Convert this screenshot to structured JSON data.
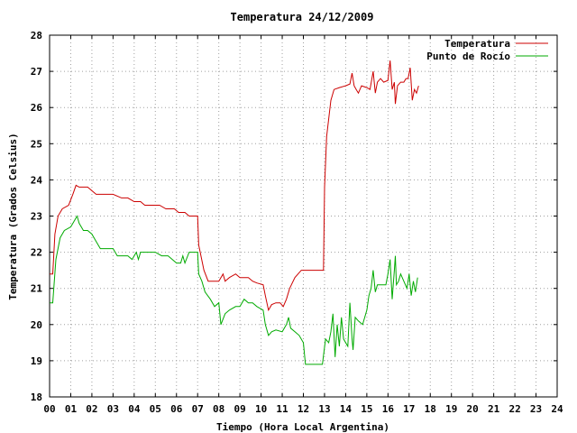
{
  "chart_data": {
    "type": "line",
    "title": "Temperatura 24/12/2009",
    "xlabel": "Tiempo (Hora Local Argentina)",
    "ylabel": "Temperatura (Grados Celsius)",
    "xlim": [
      0,
      24
    ],
    "ylim": [
      18,
      28
    ],
    "x_ticks": [
      "00",
      "01",
      "02",
      "03",
      "04",
      "05",
      "06",
      "07",
      "08",
      "09",
      "10",
      "11",
      "12",
      "13",
      "14",
      "15",
      "16",
      "17",
      "18",
      "19",
      "20",
      "21",
      "22",
      "23",
      "24"
    ],
    "y_ticks": [
      "18",
      "19",
      "20",
      "21",
      "22",
      "23",
      "24",
      "25",
      "26",
      "27",
      "28"
    ],
    "grid": true,
    "legend_position": "top-right",
    "series": [
      {
        "name": "Temperatura",
        "color": "#cc0000",
        "points": [
          [
            0.0,
            21.4
          ],
          [
            0.15,
            21.4
          ],
          [
            0.25,
            22.5
          ],
          [
            0.4,
            23.0
          ],
          [
            0.6,
            23.2
          ],
          [
            0.9,
            23.3
          ],
          [
            1.1,
            23.6
          ],
          [
            1.25,
            23.85
          ],
          [
            1.4,
            23.8
          ],
          [
            1.6,
            23.8
          ],
          [
            1.8,
            23.8
          ],
          [
            2.0,
            23.7
          ],
          [
            2.2,
            23.6
          ],
          [
            2.6,
            23.6
          ],
          [
            3.0,
            23.6
          ],
          [
            3.4,
            23.5
          ],
          [
            3.7,
            23.5
          ],
          [
            4.0,
            23.4
          ],
          [
            4.3,
            23.4
          ],
          [
            4.5,
            23.3
          ],
          [
            4.9,
            23.3
          ],
          [
            5.2,
            23.3
          ],
          [
            5.5,
            23.2
          ],
          [
            5.9,
            23.2
          ],
          [
            6.1,
            23.1
          ],
          [
            6.4,
            23.1
          ],
          [
            6.6,
            23.0
          ],
          [
            7.0,
            23.0
          ],
          [
            7.05,
            22.2
          ],
          [
            7.3,
            21.5
          ],
          [
            7.5,
            21.2
          ],
          [
            7.8,
            21.2
          ],
          [
            8.0,
            21.2
          ],
          [
            8.2,
            21.4
          ],
          [
            8.3,
            21.2
          ],
          [
            8.5,
            21.3
          ],
          [
            8.8,
            21.4
          ],
          [
            9.0,
            21.3
          ],
          [
            9.4,
            21.3
          ],
          [
            9.6,
            21.2
          ],
          [
            9.8,
            21.15
          ],
          [
            10.1,
            21.1
          ],
          [
            10.2,
            20.8
          ],
          [
            10.35,
            20.4
          ],
          [
            10.5,
            20.55
          ],
          [
            10.7,
            20.6
          ],
          [
            10.9,
            20.6
          ],
          [
            11.05,
            20.5
          ],
          [
            11.2,
            20.7
          ],
          [
            11.35,
            21.0
          ],
          [
            11.6,
            21.3
          ],
          [
            11.9,
            21.5
          ],
          [
            12.2,
            21.5
          ],
          [
            12.6,
            21.5
          ],
          [
            12.95,
            21.5
          ],
          [
            13.0,
            23.8
          ],
          [
            13.1,
            25.2
          ],
          [
            13.3,
            26.2
          ],
          [
            13.45,
            26.5
          ],
          [
            13.7,
            26.55
          ],
          [
            14.0,
            26.6
          ],
          [
            14.2,
            26.65
          ],
          [
            14.3,
            26.95
          ],
          [
            14.4,
            26.6
          ],
          [
            14.5,
            26.5
          ],
          [
            14.6,
            26.4
          ],
          [
            14.75,
            26.6
          ],
          [
            15.0,
            26.55
          ],
          [
            15.15,
            26.5
          ],
          [
            15.3,
            27.0
          ],
          [
            15.4,
            26.4
          ],
          [
            15.5,
            26.7
          ],
          [
            15.65,
            26.8
          ],
          [
            15.8,
            26.7
          ],
          [
            16.0,
            26.75
          ],
          [
            16.1,
            27.3
          ],
          [
            16.2,
            26.5
          ],
          [
            16.3,
            26.7
          ],
          [
            16.35,
            26.1
          ],
          [
            16.45,
            26.6
          ],
          [
            16.6,
            26.7
          ],
          [
            16.75,
            26.7
          ],
          [
            16.85,
            26.8
          ],
          [
            16.95,
            26.8
          ],
          [
            17.05,
            27.1
          ],
          [
            17.15,
            26.2
          ],
          [
            17.25,
            26.5
          ],
          [
            17.35,
            26.4
          ],
          [
            17.45,
            26.6
          ]
        ]
      },
      {
        "name": "Punto de Rocío",
        "color": "#00aa00",
        "points": [
          [
            0.0,
            20.6
          ],
          [
            0.15,
            20.6
          ],
          [
            0.3,
            21.8
          ],
          [
            0.5,
            22.4
          ],
          [
            0.7,
            22.6
          ],
          [
            1.0,
            22.7
          ],
          [
            1.2,
            22.9
          ],
          [
            1.3,
            23.0
          ],
          [
            1.4,
            22.8
          ],
          [
            1.6,
            22.6
          ],
          [
            1.8,
            22.6
          ],
          [
            2.0,
            22.5
          ],
          [
            2.2,
            22.3
          ],
          [
            2.4,
            22.1
          ],
          [
            2.8,
            22.1
          ],
          [
            3.0,
            22.1
          ],
          [
            3.2,
            21.9
          ],
          [
            3.5,
            21.9
          ],
          [
            3.7,
            21.9
          ],
          [
            3.9,
            21.8
          ],
          [
            4.1,
            22.0
          ],
          [
            4.2,
            21.8
          ],
          [
            4.3,
            22.0
          ],
          [
            4.6,
            22.0
          ],
          [
            5.0,
            22.0
          ],
          [
            5.3,
            21.9
          ],
          [
            5.6,
            21.9
          ],
          [
            5.8,
            21.8
          ],
          [
            6.0,
            21.7
          ],
          [
            6.2,
            21.7
          ],
          [
            6.3,
            21.9
          ],
          [
            6.4,
            21.7
          ],
          [
            6.6,
            22.0
          ],
          [
            7.0,
            22.0
          ],
          [
            7.05,
            21.4
          ],
          [
            7.2,
            21.2
          ],
          [
            7.35,
            20.9
          ],
          [
            7.6,
            20.7
          ],
          [
            7.8,
            20.5
          ],
          [
            8.0,
            20.6
          ],
          [
            8.1,
            20.0
          ],
          [
            8.3,
            20.3
          ],
          [
            8.5,
            20.4
          ],
          [
            8.8,
            20.5
          ],
          [
            9.0,
            20.5
          ],
          [
            9.2,
            20.7
          ],
          [
            9.4,
            20.6
          ],
          [
            9.6,
            20.6
          ],
          [
            9.8,
            20.5
          ],
          [
            10.1,
            20.4
          ],
          [
            10.2,
            20.0
          ],
          [
            10.35,
            19.7
          ],
          [
            10.5,
            19.8
          ],
          [
            10.7,
            19.85
          ],
          [
            11.0,
            19.8
          ],
          [
            11.2,
            20.0
          ],
          [
            11.3,
            20.2
          ],
          [
            11.4,
            19.9
          ],
          [
            11.6,
            19.8
          ],
          [
            11.8,
            19.7
          ],
          [
            12.0,
            19.5
          ],
          [
            12.1,
            18.9
          ],
          [
            12.5,
            18.9
          ],
          [
            12.9,
            18.9
          ],
          [
            13.05,
            19.6
          ],
          [
            13.2,
            19.5
          ],
          [
            13.3,
            19.8
          ],
          [
            13.4,
            20.3
          ],
          [
            13.5,
            19.1
          ],
          [
            13.6,
            20.0
          ],
          [
            13.7,
            19.4
          ],
          [
            13.8,
            20.2
          ],
          [
            13.9,
            19.6
          ],
          [
            14.0,
            19.5
          ],
          [
            14.1,
            19.4
          ],
          [
            14.2,
            20.6
          ],
          [
            14.3,
            19.6
          ],
          [
            14.35,
            19.3
          ],
          [
            14.45,
            20.2
          ],
          [
            14.6,
            20.1
          ],
          [
            14.8,
            20.0
          ],
          [
            15.0,
            20.4
          ],
          [
            15.1,
            20.8
          ],
          [
            15.2,
            21.0
          ],
          [
            15.3,
            21.5
          ],
          [
            15.4,
            20.9
          ],
          [
            15.5,
            21.1
          ],
          [
            15.7,
            21.1
          ],
          [
            15.9,
            21.1
          ],
          [
            16.0,
            21.4
          ],
          [
            16.1,
            21.8
          ],
          [
            16.2,
            20.7
          ],
          [
            16.3,
            21.5
          ],
          [
            16.35,
            21.9
          ],
          [
            16.4,
            21.1
          ],
          [
            16.5,
            21.2
          ],
          [
            16.6,
            21.4
          ],
          [
            16.75,
            21.2
          ],
          [
            16.9,
            21.0
          ],
          [
            17.0,
            21.4
          ],
          [
            17.1,
            20.8
          ],
          [
            17.2,
            21.2
          ],
          [
            17.3,
            20.9
          ],
          [
            17.4,
            21.3
          ]
        ]
      }
    ]
  }
}
